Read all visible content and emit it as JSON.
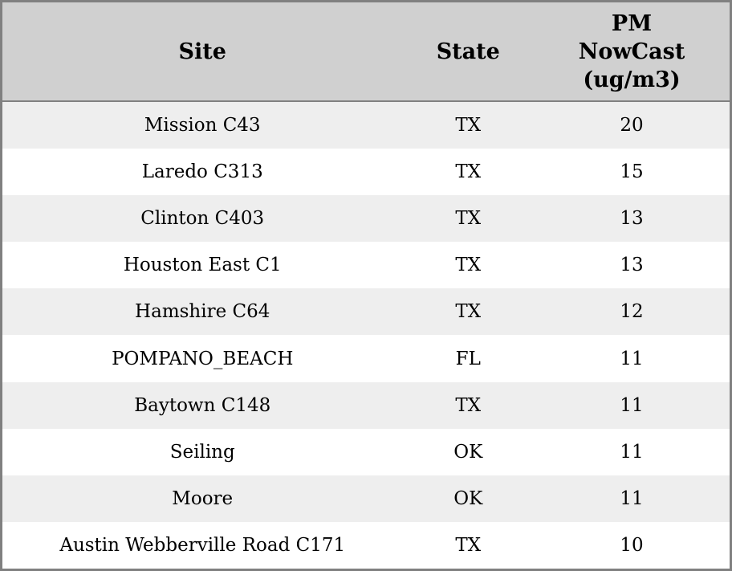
{
  "chart_data": {
    "type": "table",
    "columns": [
      "Site",
      "State",
      "PM NowCast (ug/m3)"
    ],
    "rows": [
      [
        "Mission C43",
        "TX",
        20
      ],
      [
        "Laredo C313",
        "TX",
        15
      ],
      [
        "Clinton C403",
        "TX",
        13
      ],
      [
        "Houston East C1",
        "TX",
        13
      ],
      [
        "Hamshire C64",
        "TX",
        12
      ],
      [
        "POMPANO_BEACH",
        "FL",
        11
      ],
      [
        "Baytown C148",
        "TX",
        11
      ],
      [
        "Seiling",
        "OK",
        11
      ],
      [
        "Moore",
        "OK",
        11
      ],
      [
        "Austin Webberville Road C171",
        "TX",
        10
      ]
    ]
  },
  "header": {
    "site": "Site",
    "state": "State",
    "pm_line1": "PM",
    "pm_line2": "NowCast",
    "pm_line3": "(ug/m3)"
  },
  "rows": [
    {
      "site": "Mission C43",
      "state": "TX",
      "value": "20"
    },
    {
      "site": "Laredo C313",
      "state": "TX",
      "value": "15"
    },
    {
      "site": "Clinton C403",
      "state": "TX",
      "value": "13"
    },
    {
      "site": "Houston East C1",
      "state": "TX",
      "value": "13"
    },
    {
      "site": "Hamshire C64",
      "state": "TX",
      "value": "12"
    },
    {
      "site": "POMPANO_BEACH",
      "state": "FL",
      "value": "11"
    },
    {
      "site": "Baytown C148",
      "state": "TX",
      "value": "11"
    },
    {
      "site": "Seiling",
      "state": "OK",
      "value": "11"
    },
    {
      "site": "Moore",
      "state": "OK",
      "value": "11"
    },
    {
      "site": "Austin Webberville Road C171",
      "state": "TX",
      "value": "10"
    }
  ],
  "colors": {
    "header_bg": "#d0d0d0",
    "stripe_bg": "#eeeeee",
    "row_bg": "#ffffff",
    "border": "#808080",
    "text": "#000000"
  }
}
